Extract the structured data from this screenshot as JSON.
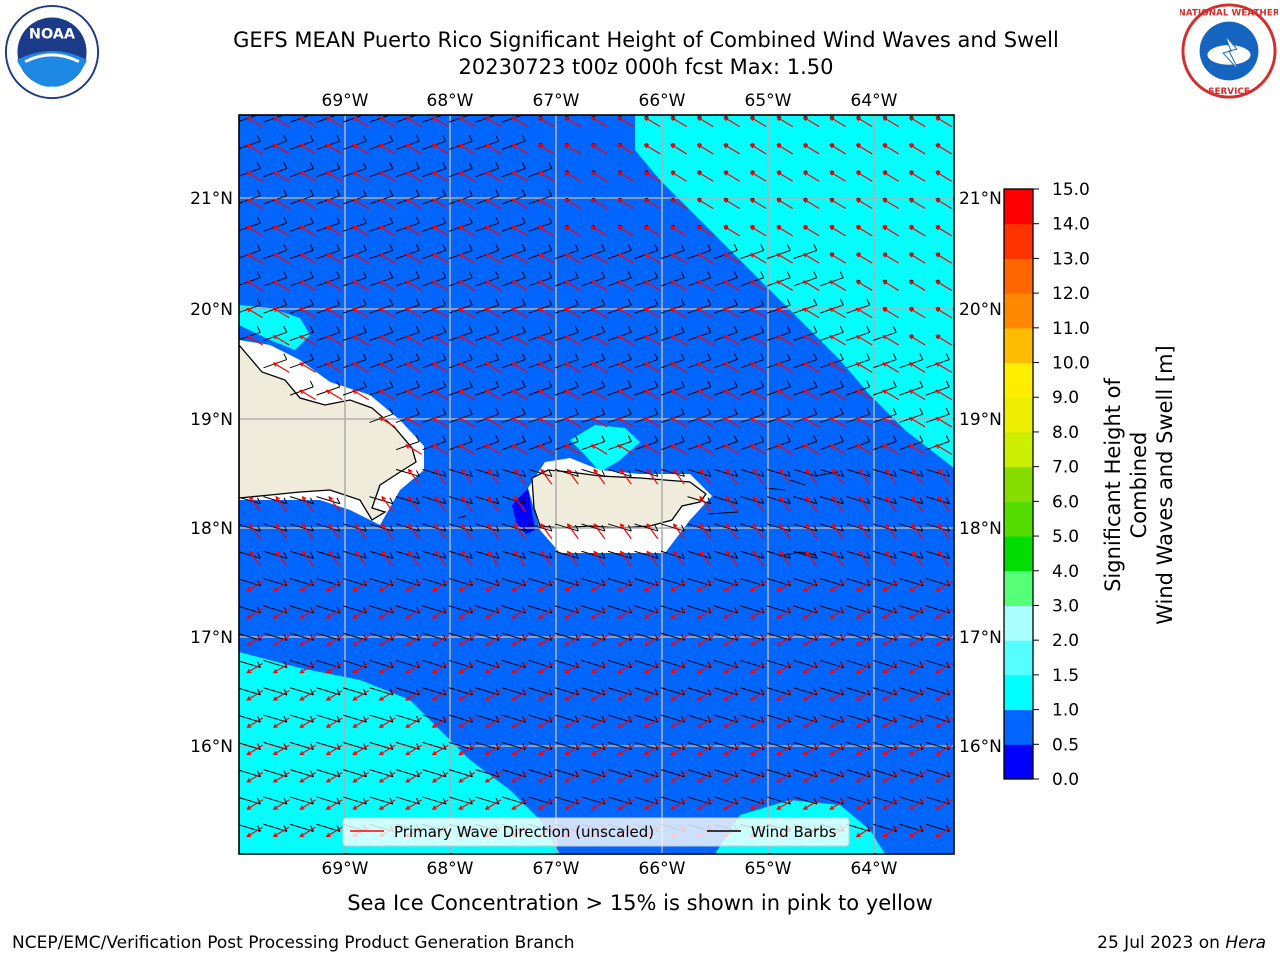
{
  "title": {
    "line1": "GEFS MEAN Puerto Rico Significant Height of Combined Wind Waves and Swell",
    "line2": "20230723 t00z 000h fcst   Max: 1.50"
  },
  "logos": {
    "left": {
      "icon": "noaa-logo",
      "text": "NOAA"
    },
    "right": {
      "icon": "nws-logo",
      "text": "NATIONAL WEATHER SERVICE"
    }
  },
  "map": {
    "lon_labels": [
      "69°W",
      "68°W",
      "67°W",
      "66°W",
      "65°W",
      "64°W"
    ],
    "lat_labels_left": [
      "21°N",
      "20°N",
      "19°N",
      "18°N",
      "17°N",
      "16°N"
    ],
    "lat_labels_right": [
      "21°N",
      "20°N",
      "19°N",
      "18°N",
      "17°N",
      "16°N"
    ],
    "legend": {
      "wave_label": "Primary Wave Direction (unscaled)",
      "wind_label": "Wind Barbs",
      "wave_color": "#ff0000",
      "wind_color": "#000000"
    },
    "colors": {
      "land": "#efecdc",
      "open_water": "#0066ff",
      "low_water": "#00ffff",
      "lowest_water": "#0000ff",
      "grid": "#b0b0b0"
    }
  },
  "colorbar": {
    "label": "Significant Height of Combined\nWind Waves and Swell [m]",
    "ticks": [
      "0.0",
      "0.5",
      "1.0",
      "1.5",
      "2.0",
      "3.0",
      "4.0",
      "5.0",
      "6.0",
      "7.0",
      "8.0",
      "9.0",
      "10.0",
      "11.0",
      "12.0",
      "13.0",
      "14.0",
      "15.0"
    ],
    "colors": [
      "#0000ff",
      "#0066ff",
      "#00ffff",
      "#55ffff",
      "#aaffff",
      "#55ff77",
      "#00dd00",
      "#55dd00",
      "#88dd00",
      "#ccee00",
      "#eeee00",
      "#ffee00",
      "#ffbb00",
      "#ff8800",
      "#ff6600",
      "#ff3300",
      "#ff0000"
    ]
  },
  "subtitle": "Sea Ice Concentration > 15% is shown in pink to yellow",
  "footer": {
    "left": "NCEP/EMC/Verification Post Processing Product Generation Branch",
    "right_prefix": "25 Jul 2023 on ",
    "right_machine": "Hera"
  }
}
